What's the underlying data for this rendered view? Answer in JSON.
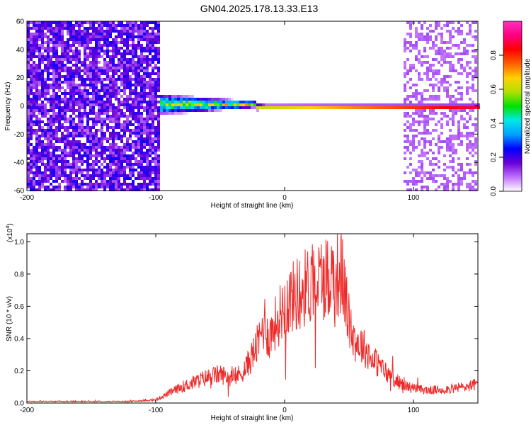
{
  "chart_data": [
    {
      "type": "heatmap",
      "title": "GN04.2025.178.13.33.E13",
      "xlabel": "Height of straight line (km)",
      "ylabel": "Frequency (Hz)",
      "xlim": [
        -200,
        150
      ],
      "ylim": [
        -60,
        60
      ],
      "x_ticks": [
        -200,
        -100,
        0,
        100
      ],
      "y_ticks": [
        -60,
        -40,
        -20,
        0,
        20,
        40,
        60
      ],
      "colorbar": {
        "label": "Normalized spectral amplitude",
        "range": [
          0.0,
          1.0
        ],
        "ticks": [
          0.0,
          0.2,
          0.4,
          0.6,
          0.8
        ],
        "colormap": [
          "#ffffff",
          "#c070ff",
          "#6a00d8",
          "#0000ff",
          "#00a0ff",
          "#00e8e8",
          "#00e000",
          "#b0e000",
          "#ffd000",
          "#ff6000",
          "#ff0000",
          "#ff0080",
          "#ff30c0"
        ]
      },
      "regions": [
        {
          "name": "noise-left",
          "x": [
            -200,
            -98
          ],
          "freq": [
            -60,
            60
          ],
          "amplitude": 0.2
        },
        {
          "name": "noise-right",
          "x": [
            92,
            148
          ],
          "freq": [
            -60,
            60
          ],
          "amplitude": 0.08
        },
        {
          "name": "signal-band",
          "x": [
            -98,
            150
          ],
          "freq_center": 0,
          "freq_halfwidth_start": 8,
          "freq_halfwidth_end": 2,
          "amplitude_peak": 1.0
        }
      ]
    },
    {
      "type": "line",
      "xlabel": "Height of straight line (km)",
      "ylabel": "SNR (10 * v/v)",
      "y_multiplier": "(x10",
      "y_multiplier_exp": "4",
      "xlim": [
        -200,
        150
      ],
      "ylim": [
        0,
        1.05
      ],
      "x_ticks": [
        -200,
        -100,
        0,
        100
      ],
      "y_ticks": [
        0.0,
        0.2,
        0.4,
        0.6,
        0.8,
        1.0
      ],
      "color": "#ee2a2a",
      "x": [
        -200,
        -180,
        -160,
        -140,
        -120,
        -100,
        -90,
        -80,
        -70,
        -60,
        -50,
        -40,
        -35,
        -30,
        -25,
        -20,
        -15,
        -14,
        -12,
        -10,
        -5,
        0,
        10,
        20,
        30,
        40,
        45,
        50,
        55,
        60,
        70,
        80,
        90,
        100,
        110,
        120,
        130,
        140,
        150
      ],
      "values": [
        0.01,
        0.01,
        0.01,
        0.01,
        0.01,
        0.02,
        0.06,
        0.1,
        0.13,
        0.16,
        0.18,
        0.15,
        0.18,
        0.22,
        0.3,
        0.38,
        0.52,
        0.45,
        0.4,
        0.45,
        0.53,
        0.62,
        0.68,
        0.74,
        0.78,
        0.8,
        0.79,
        0.5,
        0.38,
        0.36,
        0.26,
        0.18,
        0.12,
        0.09,
        0.08,
        0.08,
        0.09,
        0.1,
        0.12
      ]
    }
  ]
}
